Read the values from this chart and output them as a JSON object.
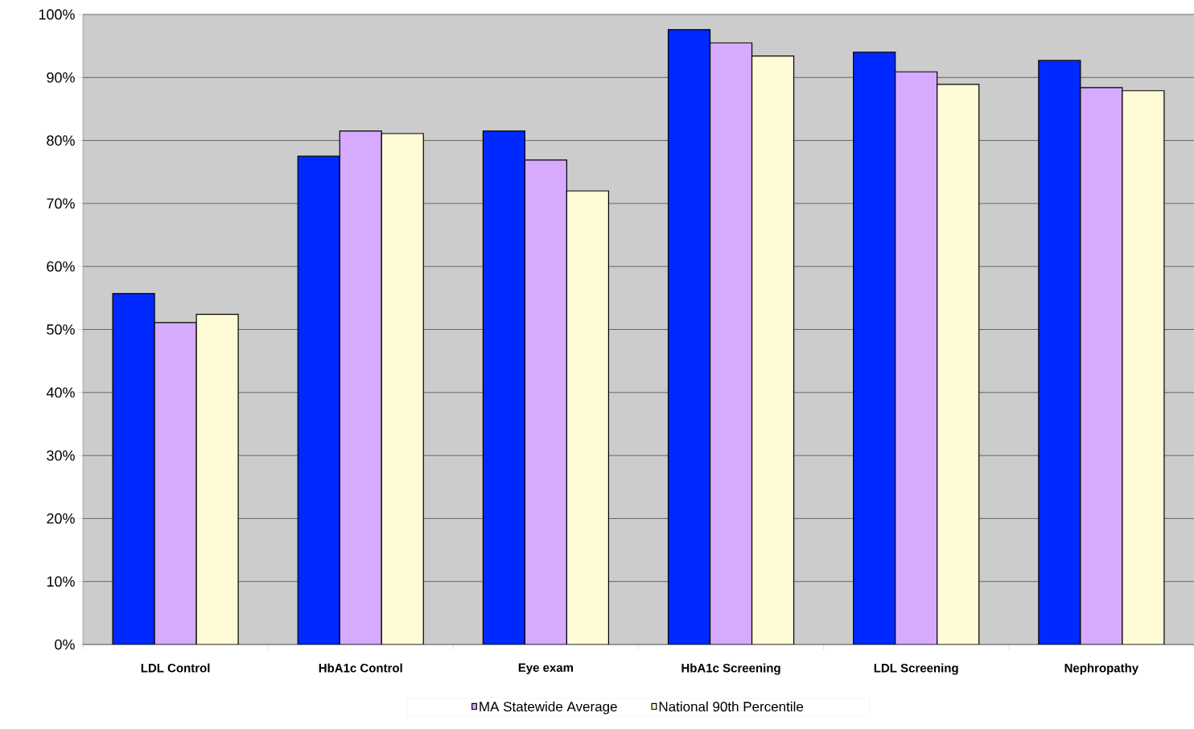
{
  "chart_data": {
    "type": "bar",
    "categories": [
      "LDL Control",
      "HbA1c Control",
      "Eye exam",
      "HbA1c Screening",
      "LDL Screening",
      "Nephropathy"
    ],
    "series": [
      {
        "color": "#0029ff",
        "values": [
          55.7,
          77.5,
          81.5,
          97.6,
          94.0,
          92.7
        ]
      },
      {
        "name": "MA Statewide Average",
        "color": "#d5aaff",
        "values": [
          51.1,
          81.5,
          76.9,
          95.5,
          90.9,
          88.4
        ]
      },
      {
        "name": "National 90th Percentile",
        "color": "#fffbd6",
        "values": [
          52.4,
          81.1,
          72.0,
          93.4,
          88.9,
          87.9
        ]
      }
    ],
    "ylim": [
      0,
      100
    ],
    "yticks": [
      {
        "value": 0,
        "label": "0%"
      },
      {
        "value": 10,
        "label": "10%"
      },
      {
        "value": 20,
        "label": "20%"
      },
      {
        "value": 30,
        "label": "30%"
      },
      {
        "value": 40,
        "label": "40%"
      },
      {
        "value": 50,
        "label": "50%"
      },
      {
        "value": 60,
        "label": "60%"
      },
      {
        "value": 70,
        "label": "70%"
      },
      {
        "value": 80,
        "label": "80%"
      },
      {
        "value": 90,
        "label": "90%"
      },
      {
        "value": 100,
        "label": "100%"
      }
    ],
    "grid": "y",
    "legend": "bottom"
  }
}
